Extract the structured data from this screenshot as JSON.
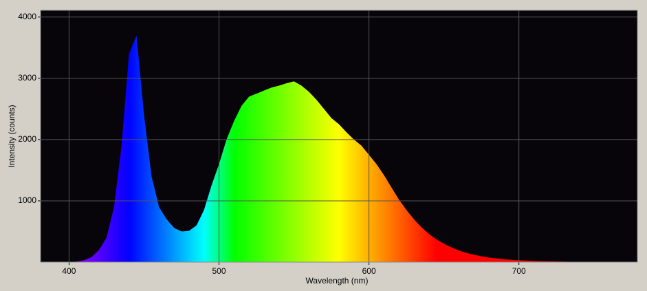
{
  "chart_data": {
    "type": "area",
    "x_label": "Wavelength (nm)",
    "y_label": "Intensity (counts)",
    "x": [
      385,
      390,
      395,
      400,
      405,
      410,
      415,
      420,
      425,
      430,
      435,
      440,
      445,
      450,
      455,
      460,
      465,
      470,
      475,
      480,
      485,
      490,
      495,
      500,
      505,
      510,
      515,
      520,
      525,
      530,
      535,
      540,
      545,
      550,
      555,
      560,
      565,
      570,
      575,
      580,
      585,
      590,
      595,
      600,
      605,
      610,
      615,
      620,
      625,
      630,
      635,
      640,
      645,
      650,
      655,
      660,
      665,
      670,
      675,
      680,
      685,
      690,
      695,
      700,
      705,
      710,
      715,
      720,
      725,
      730,
      735,
      740,
      745,
      750,
      755,
      760,
      765,
      770
    ],
    "values": [
      0,
      0,
      0,
      0,
      10,
      30,
      80,
      200,
      400,
      900,
      1900,
      3400,
      3700,
      2400,
      1400,
      900,
      700,
      560,
      500,
      510,
      600,
      850,
      1250,
      1600,
      2000,
      2300,
      2550,
      2700,
      2750,
      2800,
      2850,
      2880,
      2920,
      2950,
      2880,
      2780,
      2650,
      2500,
      2350,
      2250,
      2120,
      2000,
      1900,
      1750,
      1600,
      1420,
      1220,
      1020,
      850,
      700,
      570,
      460,
      370,
      300,
      240,
      190,
      150,
      120,
      95,
      75,
      60,
      48,
      38,
      30,
      25,
      20,
      16,
      13,
      10,
      8,
      6,
      5,
      4,
      3,
      2,
      1,
      0,
      0
    ],
    "xlim": [
      381,
      779
    ],
    "ylim": [
      0,
      4110
    ],
    "xticks": [
      400,
      500,
      600,
      700
    ],
    "yticks": [
      1000,
      2000,
      3000,
      4000
    ],
    "grid": true
  }
}
